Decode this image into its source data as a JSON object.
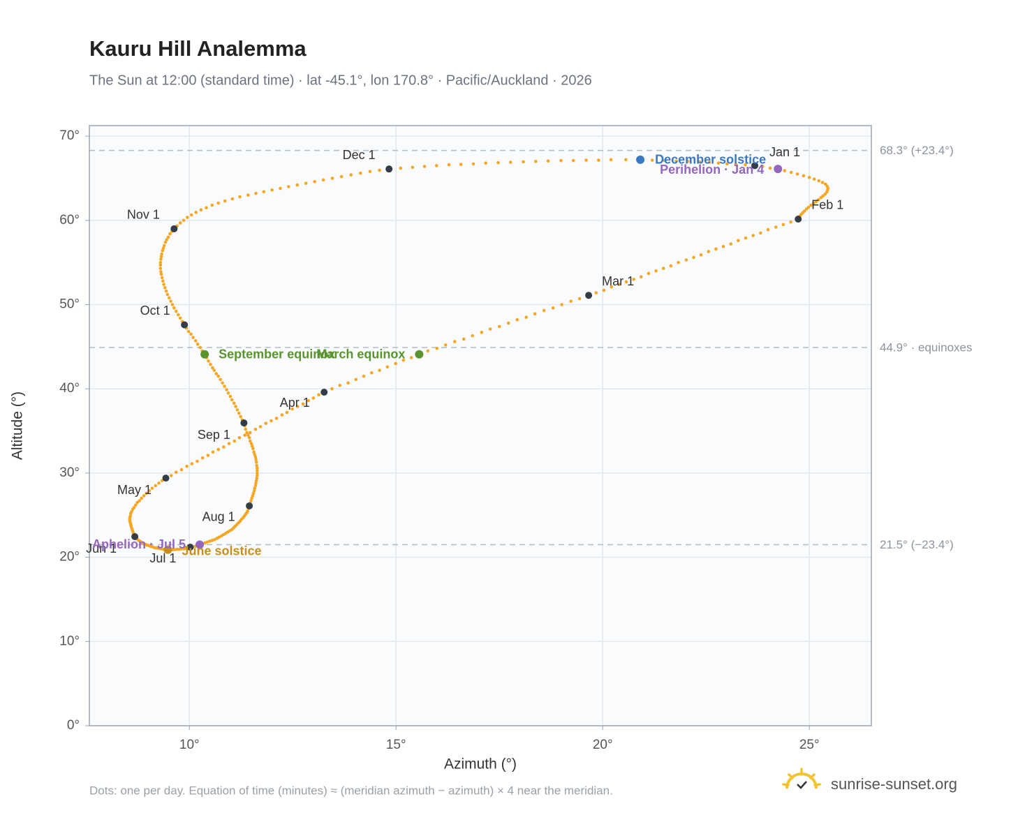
{
  "chart_data": {
    "type": "scatter",
    "title": "Kauru Hill Analemma",
    "subtitle": "The Sun at 12:00 (standard time) · lat -45.1°, lon 170.8° · Pacific/Auckland · 2026",
    "x_label": "Azimuth (°)",
    "y_label": "Altitude (°)",
    "xlim": [
      7.58,
      26.5
    ],
    "ylim": [
      0,
      71.25
    ],
    "xticks": [
      {
        "value": 10,
        "label": "10°"
      },
      {
        "value": 15,
        "label": "15°"
      },
      {
        "value": 20,
        "label": "20°"
      },
      {
        "value": 25,
        "label": "25°"
      }
    ],
    "yticks": [
      {
        "value": 0,
        "label": "0°"
      },
      {
        "value": 10,
        "label": "10°"
      },
      {
        "value": 20,
        "label": "20°"
      },
      {
        "value": 30,
        "label": "30°"
      },
      {
        "value": 40,
        "label": "40°"
      },
      {
        "value": 50,
        "label": "50°"
      },
      {
        "value": 60,
        "label": "60°"
      },
      {
        "value": 70,
        "label": "70°"
      }
    ],
    "grid": true,
    "color": "#f5a623",
    "x": [
      23.68,
      23.87,
      24.05,
      24.24,
      24.4,
      24.56,
      24.71,
      24.86,
      25.0,
      25.12,
      25.23,
      25.32,
      25.39,
      25.43,
      25.45,
      25.44,
      25.42,
      25.38,
      25.33,
      25.28,
      25.22,
      25.16,
      25.1,
      25.04,
      24.98,
      24.93,
      24.88,
      24.84,
      24.8,
      24.77,
      24.75,
      24.73,
      24.55,
      24.37,
      24.19,
      24.0,
      23.82,
      23.64,
      23.46,
      23.28,
      23.1,
      22.92,
      22.74,
      22.56,
      22.38,
      22.2,
      22.02,
      21.83,
      21.65,
      21.47,
      21.29,
      21.11,
      20.93,
      20.75,
      20.57,
      20.39,
      20.21,
      20.03,
      19.84,
      19.66,
      19.44,
      19.23,
      19.01,
      18.8,
      18.58,
      18.36,
      18.15,
      17.93,
      17.72,
      17.5,
      17.28,
      17.07,
      16.85,
      16.64,
      16.42,
      16.2,
      15.99,
      15.77,
      15.56,
      15.37,
      15.18,
      14.99,
      14.79,
      14.6,
      14.41,
      14.22,
      14.03,
      13.84,
      13.64,
      13.45,
      13.26,
      13.13,
      13.0,
      12.88,
      12.75,
      12.62,
      12.49,
      12.36,
      12.24,
      12.11,
      11.98,
      11.85,
      11.72,
      11.6,
      11.47,
      11.34,
      11.21,
      11.09,
      10.96,
      10.83,
      10.7,
      10.57,
      10.45,
      10.32,
      10.19,
      10.06,
      9.94,
      9.81,
      9.68,
      9.56,
      9.43,
      9.34,
      9.26,
      9.18,
      9.1,
      9.03,
      8.96,
      8.9,
      8.84,
      8.79,
      8.74,
      8.7,
      8.66,
      8.63,
      8.6,
      8.58,
      8.57,
      8.56,
      8.56,
      8.56,
      8.57,
      8.58,
      8.59,
      8.6,
      8.61,
      8.62,
      8.63,
      8.64,
      8.65,
      8.66,
      8.67,
      8.68,
      8.7,
      8.72,
      8.74,
      8.76,
      8.79,
      8.82,
      8.85,
      8.89,
      8.93,
      8.97,
      9.01,
      9.06,
      9.1,
      9.15,
      9.2,
      9.26,
      9.31,
      9.37,
      9.42,
      9.48,
      9.53,
      9.59,
      9.64,
      9.7,
      9.75,
      9.8,
      9.86,
      9.91,
      9.97,
      10.02,
      10.08,
      10.14,
      10.2,
      10.25,
      10.31,
      10.37,
      10.43,
      10.49,
      10.55,
      10.61,
      10.67,
      10.72,
      10.78,
      10.83,
      10.88,
      10.93,
      10.98,
      11.03,
      11.07,
      11.11,
      11.15,
      11.19,
      11.23,
      11.26,
      11.3,
      11.33,
      11.36,
      11.39,
      11.41,
      11.43,
      11.45,
      11.47,
      11.49,
      11.51,
      11.53,
      11.55,
      11.57,
      11.58,
      11.6,
      11.61,
      11.62,
      11.63,
      11.64,
      11.64,
      11.64,
      11.64,
      11.63,
      11.62,
      11.61,
      11.6,
      11.58,
      11.56,
      11.54,
      11.52,
      11.5,
      11.47,
      11.45,
      11.42,
      11.39,
      11.36,
      11.34,
      11.32,
      11.28,
      11.24,
      11.2,
      11.16,
      11.12,
      11.08,
      11.03,
      10.99,
      10.94,
      10.9,
      10.85,
      10.8,
      10.75,
      10.7,
      10.65,
      10.6,
      10.56,
      10.51,
      10.46,
      10.42,
      10.37,
      10.31,
      10.26,
      10.2,
      10.15,
      10.09,
      10.04,
      9.98,
      9.93,
      9.88,
      9.83,
      9.78,
      9.73,
      9.68,
      9.63,
      9.59,
      9.55,
      9.51,
      9.47,
      9.44,
      9.41,
      9.38,
      9.36,
      9.34,
      9.32,
      9.31,
      9.3,
      9.3,
      9.3,
      9.31,
      9.32,
      9.33,
      9.35,
      9.37,
      9.39,
      9.42,
      9.45,
      9.49,
      9.53,
      9.58,
      9.63,
      9.7,
      9.78,
      9.86,
      9.95,
      10.05,
      10.16,
      10.28,
      10.41,
      10.55,
      10.7,
      10.86,
      11.04,
      11.22,
      11.42,
      11.61,
      11.8,
      12.0,
      12.2,
      12.4,
      12.61,
      12.82,
      13.03,
      13.24,
      13.46,
      13.68,
      13.91,
      14.14,
      14.37,
      14.6,
      14.83,
      15.11,
      15.4,
      15.69,
      15.98,
      16.28,
      16.57,
      16.87,
      17.17,
      17.47,
      17.77,
      18.08,
      18.38,
      18.68,
      18.99,
      19.29,
      19.6,
      19.9,
      20.2,
      20.56,
      20.91,
      21.2,
      21.5,
      21.78,
      22.06,
      22.34,
      22.58,
      22.8,
      23.01,
      23.22,
      23.45
    ],
    "values": [
      66.5,
      66.4,
      66.2,
      66.1,
      65.9,
      65.7,
      65.5,
      65.3,
      65.1,
      64.9,
      64.7,
      64.5,
      64.3,
      64.05,
      63.8,
      63.6,
      63.35,
      63.1,
      62.9,
      62.7,
      62.45,
      62.2,
      62.0,
      61.8,
      61.55,
      61.35,
      61.1,
      60.9,
      60.7,
      60.5,
      60.3,
      60.15,
      59.8,
      59.5,
      59.2,
      58.9,
      58.5,
      58.2,
      57.9,
      57.6,
      57.2,
      56.9,
      56.6,
      56.3,
      55.9,
      55.6,
      55.3,
      55.0,
      54.6,
      54.3,
      54.0,
      53.7,
      53.3,
      53.0,
      52.7,
      52.4,
      52.1,
      51.7,
      51.4,
      51.1,
      50.7,
      50.4,
      50.0,
      49.6,
      49.3,
      48.9,
      48.5,
      48.2,
      47.8,
      47.4,
      47.1,
      46.7,
      46.3,
      45.9,
      45.6,
      45.2,
      44.8,
      44.5,
      44.1,
      43.7,
      43.4,
      43.0,
      42.6,
      42.2,
      41.9,
      41.5,
      41.1,
      40.7,
      40.4,
      40.0,
      39.6,
      39.3,
      38.9,
      38.6,
      38.2,
      37.9,
      37.6,
      37.2,
      36.9,
      36.5,
      36.2,
      35.9,
      35.5,
      35.2,
      34.8,
      34.5,
      34.2,
      33.8,
      33.5,
      33.1,
      32.8,
      32.5,
      32.1,
      31.8,
      31.4,
      31.1,
      30.8,
      30.4,
      30.1,
      29.7,
      29.4,
      29.1,
      28.8,
      28.5,
      28.2,
      27.9,
      27.6,
      27.3,
      27.0,
      26.7,
      26.5,
      26.2,
      25.9,
      25.7,
      25.4,
      25.2,
      24.9,
      24.7,
      24.5,
      24.3,
      24.1,
      23.9,
      23.7,
      23.5,
      23.4,
      23.2,
      23.1,
      22.9,
      22.8,
      22.7,
      22.55,
      22.45,
      22.35,
      22.25,
      22.15,
      22.05,
      21.95,
      21.85,
      21.75,
      21.65,
      21.55,
      21.45,
      21.4,
      21.3,
      21.25,
      21.15,
      21.1,
      21.05,
      21.0,
      20.95,
      20.9,
      20.9,
      20.9,
      20.9,
      20.9,
      20.95,
      20.95,
      21.0,
      21.0,
      21.05,
      21.1,
      21.2,
      21.25,
      21.3,
      21.4,
      21.5,
      21.6,
      21.7,
      21.8,
      21.9,
      22.0,
      22.1,
      22.25,
      22.4,
      22.55,
      22.7,
      22.85,
      23.0,
      23.15,
      23.3,
      23.5,
      23.7,
      23.9,
      24.1,
      24.3,
      24.5,
      24.7,
      24.9,
      25.1,
      25.3,
      25.5,
      25.8,
      26.1,
      26.4,
      26.7,
      27.0,
      27.3,
      27.6,
      27.9,
      28.2,
      28.5,
      28.8,
      29.1,
      29.4,
      29.7,
      30.0,
      30.3,
      30.6,
      30.9,
      31.3,
      31.6,
      31.9,
      32.2,
      32.5,
      32.9,
      33.2,
      33.5,
      33.8,
      34.2,
      34.5,
      34.8,
      35.2,
      35.6,
      35.95,
      36.3,
      36.7,
      37.1,
      37.5,
      37.9,
      38.3,
      38.7,
      39.1,
      39.5,
      39.9,
      40.3,
      40.7,
      41.1,
      41.5,
      41.8,
      42.2,
      42.5,
      42.9,
      43.3,
      43.7,
      44.1,
      44.5,
      44.9,
      45.3,
      45.7,
      46.1,
      46.5,
      46.8,
      47.2,
      47.6,
      48.0,
      48.4,
      48.8,
      49.2,
      49.6,
      50.0,
      50.4,
      50.8,
      51.2,
      51.6,
      52.0,
      52.4,
      52.8,
      53.2,
      53.6,
      53.9,
      54.3,
      54.7,
      55.0,
      55.4,
      55.7,
      56.0,
      56.4,
      56.7,
      57.0,
      57.4,
      57.7,
      58.0,
      58.4,
      58.7,
      59.0,
      59.35,
      59.7,
      60.0,
      60.35,
      60.65,
      60.95,
      61.25,
      61.5,
      61.8,
      62.05,
      62.3,
      62.55,
      62.8,
      63.0,
      63.2,
      63.4,
      63.6,
      63.8,
      64.0,
      64.2,
      64.4,
      64.6,
      64.8,
      65.0,
      65.2,
      65.4,
      65.6,
      65.8,
      65.95,
      66.1,
      66.2,
      66.3,
      66.4,
      66.5,
      66.6,
      66.65,
      66.7,
      66.8,
      66.85,
      66.9,
      66.95,
      67.0,
      67.05,
      67.1,
      67.1,
      67.15,
      67.15,
      67.2,
      67.2,
      67.2,
      67.15,
      67.1,
      67.05,
      67.0,
      66.95,
      66.9,
      66.8,
      66.7,
      66.65,
      66.6
    ],
    "month_markers": {
      "color": "#333d47",
      "labels": [
        "Jan 1",
        "Feb 1",
        "Mar 1",
        "Apr 1",
        "May 1",
        "Jun 1",
        "Jul 1",
        "Aug 1",
        "Sep 1",
        "Oct 1",
        "Nov 1",
        "Dec 1"
      ],
      "x": [
        23.68,
        24.73,
        19.66,
        13.26,
        9.43,
        8.68,
        10.02,
        11.45,
        11.32,
        9.88,
        9.63,
        14.83
      ],
      "y": [
        66.5,
        60.15,
        51.1,
        39.6,
        29.4,
        22.45,
        21.2,
        26.1,
        35.95,
        47.6,
        59.0,
        66.1
      ]
    },
    "events": [
      {
        "label": "December solstice",
        "x": 20.91,
        "y": 67.2,
        "color": "#3a78c2"
      },
      {
        "label": "Perihelion · Jan 4",
        "x": 24.24,
        "y": 66.1,
        "color": "#9467bd"
      },
      {
        "label": "March equinox",
        "x": 15.56,
        "y": 44.1,
        "color": "#5a942e"
      },
      {
        "label": "September equinox",
        "x": 10.37,
        "y": 44.1,
        "color": "#5a942e"
      },
      {
        "label": "June solstice",
        "x": 9.48,
        "y": 20.9,
        "color": "#c8901a"
      },
      {
        "label": "Aphelion · Jul 5",
        "x": 10.25,
        "y": 21.5,
        "color": "#9467bd"
      }
    ],
    "reference_lines": [
      {
        "value": 68.3,
        "label": "68.3° (+23.4°)"
      },
      {
        "value": 44.9,
        "label": "44.9° · equinoxes"
      },
      {
        "value": 21.5,
        "label": "21.5° (−23.4°)"
      }
    ],
    "footnote": "Dots: one per day. Equation of time (minutes) ≈ (meridian azimuth − azimuth) × 4 near the meridian.",
    "branding": "sunrise-sunset.org"
  }
}
